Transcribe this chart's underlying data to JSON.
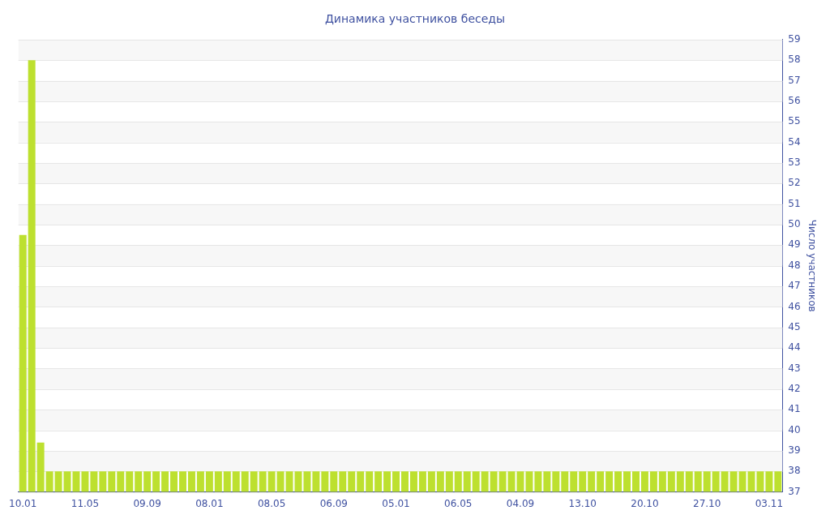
{
  "chart_data": {
    "type": "bar",
    "title": "Динамика участников беседы",
    "ylabel": "Число участников",
    "categories": [
      "10.01",
      null,
      null,
      null,
      null,
      null,
      null,
      "11.05",
      null,
      null,
      null,
      null,
      null,
      null,
      "09.09",
      null,
      null,
      null,
      null,
      null,
      null,
      "08.01",
      null,
      null,
      null,
      null,
      null,
      null,
      "08.05",
      null,
      null,
      null,
      null,
      null,
      null,
      "06.09",
      null,
      null,
      null,
      null,
      null,
      null,
      "05.01",
      null,
      null,
      null,
      null,
      null,
      null,
      "06.05",
      null,
      null,
      null,
      null,
      null,
      null,
      "04.09",
      null,
      null,
      null,
      null,
      null,
      null,
      "13.10",
      null,
      null,
      null,
      null,
      null,
      null,
      "20.10",
      null,
      null,
      null,
      null,
      null,
      null,
      "27.10",
      null,
      null,
      null,
      null,
      null,
      null,
      "03.11",
      null
    ],
    "values": [
      49.5,
      58,
      39.4,
      38,
      38,
      38,
      38,
      38,
      38,
      38,
      38,
      38,
      38,
      38,
      38,
      38,
      38,
      38,
      38,
      38,
      38,
      38,
      38,
      38,
      38,
      38,
      38,
      38,
      38,
      38,
      38,
      38,
      38,
      38,
      38,
      38,
      38,
      38,
      38,
      38,
      38,
      38,
      38,
      38,
      38,
      38,
      38,
      38,
      38,
      38,
      38,
      38,
      38,
      38,
      38,
      38,
      38,
      38,
      38,
      38,
      38,
      38,
      38,
      38,
      38,
      38,
      38,
      38,
      38,
      38,
      38,
      38,
      38,
      38,
      38,
      38,
      38,
      38,
      38,
      38,
      38,
      38,
      38,
      38,
      38,
      38
    ],
    "color": "#bde02f",
    "ylim": [
      37,
      59
    ],
    "yticks": [
      37,
      38,
      39,
      40,
      41,
      42,
      43,
      44,
      45,
      46,
      47,
      48,
      49,
      50,
      51,
      52,
      53,
      54,
      55,
      56,
      57,
      58,
      59
    ],
    "grid": "y",
    "legend": false
  }
}
